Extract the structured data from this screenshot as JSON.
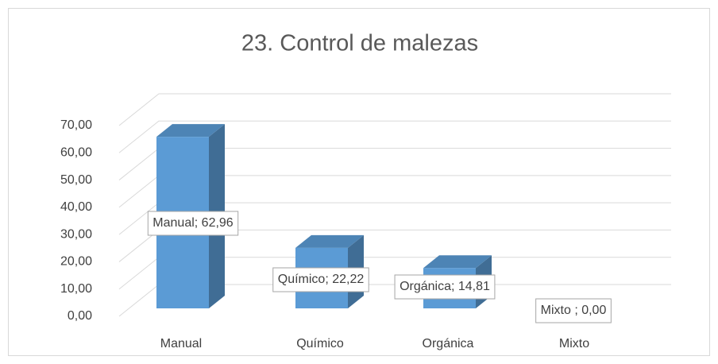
{
  "chart_data": {
    "type": "bar3d",
    "title": "23. Control de malezas",
    "categories": [
      "Manual",
      "Químico",
      "Orgánica",
      "Mixto"
    ],
    "values": [
      62.96,
      22.22,
      14.81,
      0
    ],
    "value_labels": [
      "Manual; 62,96",
      "Químico; 22,22",
      "Orgánica; 14,81",
      "Mixto ; 0,00"
    ],
    "color": "#5b9bd5",
    "ylim": [
      0,
      70
    ],
    "yticks": [
      {
        "value": 0,
        "label": "0,00"
      },
      {
        "value": 10,
        "label": "10,00"
      },
      {
        "value": 20,
        "label": "20,00"
      },
      {
        "value": 30,
        "label": "30,00"
      },
      {
        "value": 40,
        "label": "40,00"
      },
      {
        "value": 50,
        "label": "50,00"
      },
      {
        "value": 60,
        "label": "60,00"
      },
      {
        "value": 70,
        "label": "70,00"
      }
    ],
    "grid": true
  }
}
